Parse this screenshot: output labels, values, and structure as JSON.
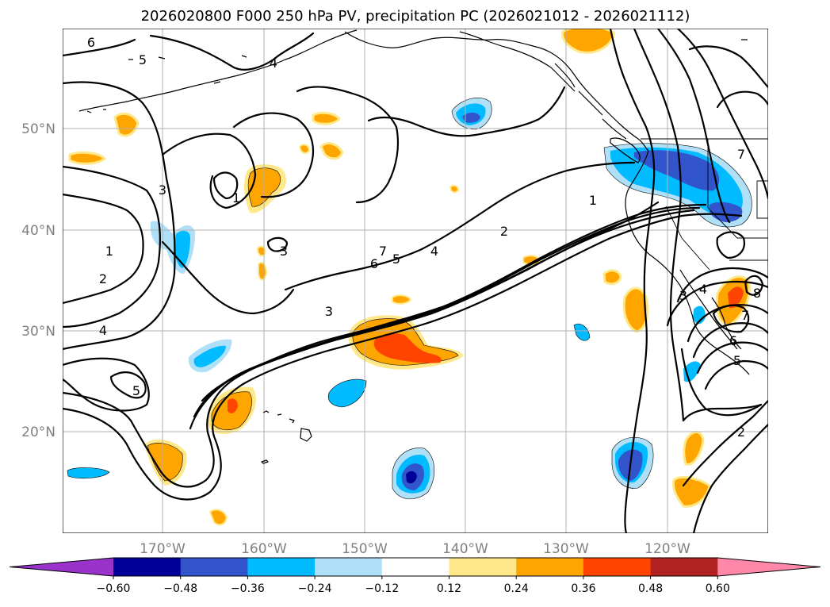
{
  "title": "2026020800 F000 250 hPa PV, precipitation PC (2026021012 - 2026021112)",
  "axes": {
    "lon_ticks": [
      "170°W",
      "160°W",
      "150°W",
      "140°W",
      "130°W",
      "120°W"
    ],
    "lat_ticks": [
      "50°N",
      "40°N",
      "30°N",
      "20°N"
    ]
  },
  "colorbar": {
    "extend": "both",
    "tick_labels": [
      "−0.60",
      "−0.48",
      "−0.36",
      "−0.24",
      "−0.12",
      "0.12",
      "0.24",
      "0.36",
      "0.48",
      "0.60"
    ],
    "bounds": [
      -0.6,
      -0.48,
      -0.36,
      -0.24,
      -0.12,
      0.12,
      0.24,
      0.36,
      0.48,
      0.6
    ],
    "colors": {
      "under": "#9933cc",
      "bins": [
        "#000099",
        "#3355cc",
        "#00bbff",
        "#b0e0f8",
        "#ffffff",
        "#ffe88a",
        "#ffa500",
        "#ff4400",
        "#b22222"
      ],
      "over": "#ff88aa"
    }
  },
  "pv_contour_labels": [
    "6",
    "5",
    "4",
    "3",
    "1",
    "2",
    "4",
    "5",
    "3",
    "6",
    "7",
    "1",
    "2",
    "4",
    "5",
    "3",
    "7",
    "1",
    "2",
    "3",
    "4",
    "5",
    "6",
    "7",
    "8"
  ]
}
